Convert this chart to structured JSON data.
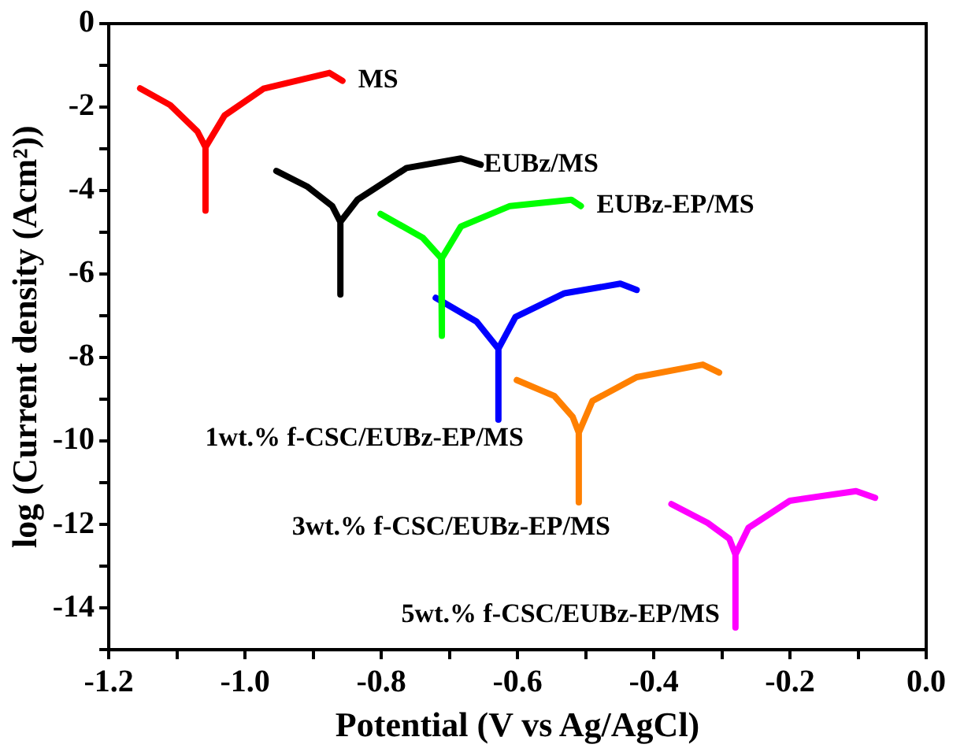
{
  "chart_data": {
    "type": "line",
    "xlabel": "Potential (V vs Ag/AgCl)",
    "ylabel": "log (Current density (Acm²))",
    "xlim": [
      -1.2,
      0.0
    ],
    "xticks": [
      -1.2,
      {
        "value": -1.1,
        "label": null
      },
      {
        "value": -1,
        "label": "-1.0"
      },
      {
        "value": -0.9,
        "label": null
      },
      -0.8,
      {
        "value": -0.7,
        "label": null
      },
      -0.6,
      {
        "value": -0.5,
        "label": null
      },
      -0.4,
      {
        "value": -0.3,
        "label": null
      },
      -0.2,
      {
        "value": -0.1,
        "label": null
      },
      {
        "value": 0,
        "label": "0.0"
      }
    ],
    "ylim": [
      -15,
      0
    ],
    "yticks": [
      0,
      {
        "value": -1,
        "label": null
      },
      -2,
      {
        "value": -3,
        "label": null
      },
      -4,
      {
        "value": -5,
        "label": null
      },
      -6,
      {
        "value": -7,
        "label": null
      },
      -8,
      {
        "value": -9,
        "label": null
      },
      -10,
      {
        "value": -11,
        "label": null
      },
      -12,
      {
        "value": -13,
        "label": null
      },
      -14,
      {
        "value": -15,
        "label": null
      }
    ],
    "grid": false,
    "legend": false,
    "marker": "none",
    "line_style": "solid",
    "series": [
      {
        "name": "MS",
        "color": "#ff0000",
        "x": [
          -1.154,
          -1.11,
          -1.07,
          -1.058,
          -1.058,
          -1.058,
          -1.03,
          -0.973,
          -0.876,
          -0.857
        ],
        "values": [
          -1.55,
          -1.95,
          -2.58,
          -2.96,
          -4.48,
          -2.96,
          -2.2,
          -1.56,
          -1.18,
          -1.37
        ]
      },
      {
        "name": "EUBz/MS",
        "color": "#000000",
        "x": [
          -0.954,
          -0.908,
          -0.872,
          -0.86,
          -0.86,
          -0.86,
          -0.835,
          -0.763,
          -0.683,
          -0.654
        ],
        "values": [
          -3.53,
          -3.91,
          -4.37,
          -4.75,
          -6.49,
          -4.75,
          -4.22,
          -3.46,
          -3.23,
          -3.38
        ]
      },
      {
        "name": "EUBz-EP/MS",
        "color": "#00ff00",
        "x": [
          -0.801,
          -0.739,
          -0.712,
          -0.71,
          -0.712,
          -0.683,
          -0.611,
          -0.521,
          -0.507
        ],
        "values": [
          -4.56,
          -5.13,
          -5.62,
          -7.48,
          -5.62,
          -4.86,
          -4.37,
          -4.22,
          -4.37
        ]
      },
      {
        "name": "1wt.% f-CSC/EUBz-EP/MS",
        "color": "#0000ff",
        "x": [
          -0.72,
          -0.66,
          -0.628,
          -0.628,
          -0.628,
          -0.603,
          -0.531,
          -0.449,
          -0.425
        ],
        "values": [
          -6.57,
          -7.14,
          -7.79,
          -9.49,
          -7.79,
          -7.03,
          -6.46,
          -6.23,
          -6.38
        ]
      },
      {
        "name": "3wt.% f-CSC/EUBz-EP/MS",
        "color": "#ff8000",
        "x": [
          -0.601,
          -0.546,
          -0.519,
          -0.51,
          -0.51,
          -0.51,
          -0.49,
          -0.425,
          -0.328,
          -0.304
        ],
        "values": [
          -8.54,
          -8.92,
          -9.42,
          -9.8,
          -11.47,
          -9.8,
          -9.04,
          -8.47,
          -8.17,
          -8.36
        ]
      },
      {
        "name": "5wt.% f-CSC/EUBz-EP/MS",
        "color": "#ff00ff",
        "x": [
          -0.374,
          -0.321,
          -0.289,
          -0.28,
          -0.28,
          -0.28,
          -0.261,
          -0.2,
          -0.103,
          -0.075
        ],
        "values": [
          -11.51,
          -11.96,
          -12.34,
          -12.72,
          -14.47,
          -12.72,
          -12.08,
          -11.43,
          -11.2,
          -11.36
        ]
      }
    ]
  }
}
